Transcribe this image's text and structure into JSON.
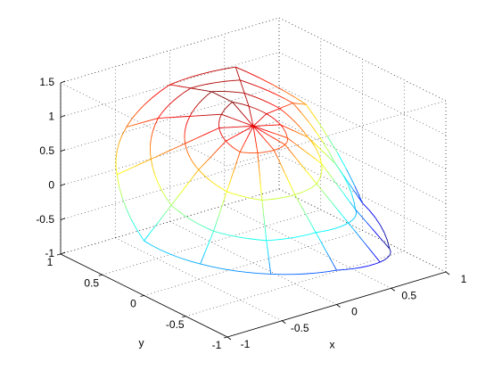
{
  "chart_data": {
    "type": "surface",
    "r": [
      0,
      0.25,
      0.5,
      0.75,
      1
    ],
    "theta": [
      0,
      30,
      60,
      90,
      120,
      150,
      180,
      210,
      240,
      270,
      300,
      330
    ],
    "z": [
      [
        1.0,
        1.0,
        1.0,
        1.0,
        1.0,
        1.0,
        1.0,
        1.0,
        1.0,
        1.0,
        1.0,
        1.0
      ],
      [
        0.9,
        1.0,
        1.1,
        1.2,
        1.1,
        1.0,
        0.9,
        0.8,
        0.8,
        0.8,
        0.8,
        0.8
      ],
      [
        0.6,
        0.9,
        1.1,
        1.2,
        1.0,
        0.8,
        0.6,
        0.4,
        0.3,
        0.3,
        0.3,
        0.4
      ],
      [
        0.1,
        0.8,
        1.1,
        1.1,
        0.9,
        0.6,
        0.2,
        0.0,
        -0.1,
        -0.1,
        -0.2,
        -0.3
      ],
      [
        -0.6,
        0.6,
        1.1,
        1.0,
        0.7,
        0.4,
        -0.2,
        -0.3,
        -0.4,
        -0.5,
        -0.7,
        -0.9
      ]
    ],
    "colormap": "jet",
    "xlim": [
      -1,
      1
    ],
    "ylim": [
      -1,
      1
    ],
    "zlim": [
      -1,
      1.5
    ],
    "xticks": [
      -1,
      -0.5,
      0,
      0.5,
      1
    ],
    "yticks": [
      -1,
      -0.5,
      0,
      0.5,
      1
    ],
    "zticks": [
      -1,
      -0.5,
      0,
      0.5,
      1,
      1.5
    ],
    "xlabel": "x",
    "ylabel": "y",
    "grid": true
  }
}
